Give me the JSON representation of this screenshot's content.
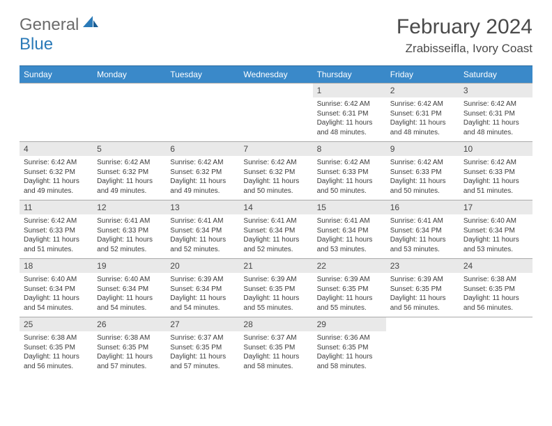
{
  "logo": {
    "text1": "General",
    "text2": "Blue"
  },
  "title": "February 2024",
  "location": "Zrabisseifla, Ivory Coast",
  "colors": {
    "header_bg": "#3a89c9",
    "header_text": "#ffffff",
    "daynum_bg": "#e9e9e9",
    "text": "#3b3b3b",
    "rule": "#a9a9a9",
    "logo_blue": "#2a7ab8",
    "logo_gray": "#6b6b6b"
  },
  "weekdays": [
    "Sunday",
    "Monday",
    "Tuesday",
    "Wednesday",
    "Thursday",
    "Friday",
    "Saturday"
  ],
  "weeks": [
    [
      {
        "num": "",
        "sunrise": "",
        "sunset": "",
        "daylight1": "",
        "daylight2": ""
      },
      {
        "num": "",
        "sunrise": "",
        "sunset": "",
        "daylight1": "",
        "daylight2": ""
      },
      {
        "num": "",
        "sunrise": "",
        "sunset": "",
        "daylight1": "",
        "daylight2": ""
      },
      {
        "num": "",
        "sunrise": "",
        "sunset": "",
        "daylight1": "",
        "daylight2": ""
      },
      {
        "num": "1",
        "sunrise": "Sunrise: 6:42 AM",
        "sunset": "Sunset: 6:31 PM",
        "daylight1": "Daylight: 11 hours",
        "daylight2": "and 48 minutes."
      },
      {
        "num": "2",
        "sunrise": "Sunrise: 6:42 AM",
        "sunset": "Sunset: 6:31 PM",
        "daylight1": "Daylight: 11 hours",
        "daylight2": "and 48 minutes."
      },
      {
        "num": "3",
        "sunrise": "Sunrise: 6:42 AM",
        "sunset": "Sunset: 6:31 PM",
        "daylight1": "Daylight: 11 hours",
        "daylight2": "and 48 minutes."
      }
    ],
    [
      {
        "num": "4",
        "sunrise": "Sunrise: 6:42 AM",
        "sunset": "Sunset: 6:32 PM",
        "daylight1": "Daylight: 11 hours",
        "daylight2": "and 49 minutes."
      },
      {
        "num": "5",
        "sunrise": "Sunrise: 6:42 AM",
        "sunset": "Sunset: 6:32 PM",
        "daylight1": "Daylight: 11 hours",
        "daylight2": "and 49 minutes."
      },
      {
        "num": "6",
        "sunrise": "Sunrise: 6:42 AM",
        "sunset": "Sunset: 6:32 PM",
        "daylight1": "Daylight: 11 hours",
        "daylight2": "and 49 minutes."
      },
      {
        "num": "7",
        "sunrise": "Sunrise: 6:42 AM",
        "sunset": "Sunset: 6:32 PM",
        "daylight1": "Daylight: 11 hours",
        "daylight2": "and 50 minutes."
      },
      {
        "num": "8",
        "sunrise": "Sunrise: 6:42 AM",
        "sunset": "Sunset: 6:33 PM",
        "daylight1": "Daylight: 11 hours",
        "daylight2": "and 50 minutes."
      },
      {
        "num": "9",
        "sunrise": "Sunrise: 6:42 AM",
        "sunset": "Sunset: 6:33 PM",
        "daylight1": "Daylight: 11 hours",
        "daylight2": "and 50 minutes."
      },
      {
        "num": "10",
        "sunrise": "Sunrise: 6:42 AM",
        "sunset": "Sunset: 6:33 PM",
        "daylight1": "Daylight: 11 hours",
        "daylight2": "and 51 minutes."
      }
    ],
    [
      {
        "num": "11",
        "sunrise": "Sunrise: 6:42 AM",
        "sunset": "Sunset: 6:33 PM",
        "daylight1": "Daylight: 11 hours",
        "daylight2": "and 51 minutes."
      },
      {
        "num": "12",
        "sunrise": "Sunrise: 6:41 AM",
        "sunset": "Sunset: 6:33 PM",
        "daylight1": "Daylight: 11 hours",
        "daylight2": "and 52 minutes."
      },
      {
        "num": "13",
        "sunrise": "Sunrise: 6:41 AM",
        "sunset": "Sunset: 6:34 PM",
        "daylight1": "Daylight: 11 hours",
        "daylight2": "and 52 minutes."
      },
      {
        "num": "14",
        "sunrise": "Sunrise: 6:41 AM",
        "sunset": "Sunset: 6:34 PM",
        "daylight1": "Daylight: 11 hours",
        "daylight2": "and 52 minutes."
      },
      {
        "num": "15",
        "sunrise": "Sunrise: 6:41 AM",
        "sunset": "Sunset: 6:34 PM",
        "daylight1": "Daylight: 11 hours",
        "daylight2": "and 53 minutes."
      },
      {
        "num": "16",
        "sunrise": "Sunrise: 6:41 AM",
        "sunset": "Sunset: 6:34 PM",
        "daylight1": "Daylight: 11 hours",
        "daylight2": "and 53 minutes."
      },
      {
        "num": "17",
        "sunrise": "Sunrise: 6:40 AM",
        "sunset": "Sunset: 6:34 PM",
        "daylight1": "Daylight: 11 hours",
        "daylight2": "and 53 minutes."
      }
    ],
    [
      {
        "num": "18",
        "sunrise": "Sunrise: 6:40 AM",
        "sunset": "Sunset: 6:34 PM",
        "daylight1": "Daylight: 11 hours",
        "daylight2": "and 54 minutes."
      },
      {
        "num": "19",
        "sunrise": "Sunrise: 6:40 AM",
        "sunset": "Sunset: 6:34 PM",
        "daylight1": "Daylight: 11 hours",
        "daylight2": "and 54 minutes."
      },
      {
        "num": "20",
        "sunrise": "Sunrise: 6:39 AM",
        "sunset": "Sunset: 6:34 PM",
        "daylight1": "Daylight: 11 hours",
        "daylight2": "and 54 minutes."
      },
      {
        "num": "21",
        "sunrise": "Sunrise: 6:39 AM",
        "sunset": "Sunset: 6:35 PM",
        "daylight1": "Daylight: 11 hours",
        "daylight2": "and 55 minutes."
      },
      {
        "num": "22",
        "sunrise": "Sunrise: 6:39 AM",
        "sunset": "Sunset: 6:35 PM",
        "daylight1": "Daylight: 11 hours",
        "daylight2": "and 55 minutes."
      },
      {
        "num": "23",
        "sunrise": "Sunrise: 6:39 AM",
        "sunset": "Sunset: 6:35 PM",
        "daylight1": "Daylight: 11 hours",
        "daylight2": "and 56 minutes."
      },
      {
        "num": "24",
        "sunrise": "Sunrise: 6:38 AM",
        "sunset": "Sunset: 6:35 PM",
        "daylight1": "Daylight: 11 hours",
        "daylight2": "and 56 minutes."
      }
    ],
    [
      {
        "num": "25",
        "sunrise": "Sunrise: 6:38 AM",
        "sunset": "Sunset: 6:35 PM",
        "daylight1": "Daylight: 11 hours",
        "daylight2": "and 56 minutes."
      },
      {
        "num": "26",
        "sunrise": "Sunrise: 6:38 AM",
        "sunset": "Sunset: 6:35 PM",
        "daylight1": "Daylight: 11 hours",
        "daylight2": "and 57 minutes."
      },
      {
        "num": "27",
        "sunrise": "Sunrise: 6:37 AM",
        "sunset": "Sunset: 6:35 PM",
        "daylight1": "Daylight: 11 hours",
        "daylight2": "and 57 minutes."
      },
      {
        "num": "28",
        "sunrise": "Sunrise: 6:37 AM",
        "sunset": "Sunset: 6:35 PM",
        "daylight1": "Daylight: 11 hours",
        "daylight2": "and 58 minutes."
      },
      {
        "num": "29",
        "sunrise": "Sunrise: 6:36 AM",
        "sunset": "Sunset: 6:35 PM",
        "daylight1": "Daylight: 11 hours",
        "daylight2": "and 58 minutes."
      },
      {
        "num": "",
        "sunrise": "",
        "sunset": "",
        "daylight1": "",
        "daylight2": ""
      },
      {
        "num": "",
        "sunrise": "",
        "sunset": "",
        "daylight1": "",
        "daylight2": ""
      }
    ]
  ]
}
